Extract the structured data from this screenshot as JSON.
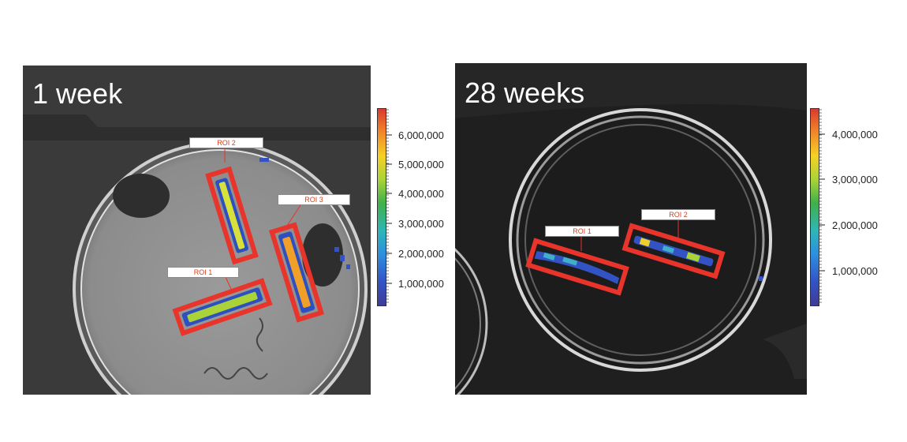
{
  "panels": [
    {
      "title": "1 week",
      "roi_labels": [
        "ROI 2",
        "ROI 3",
        "ROI 1"
      ],
      "colorbar": {
        "labels": [
          "6,000,000",
          "5,000,000",
          "4,000,000",
          "3,000,000",
          "2,000,000",
          "1,000,000"
        ]
      }
    },
    {
      "title": "28 weeks",
      "roi_labels": [
        "ROI 1",
        "ROI 2"
      ],
      "colorbar": {
        "labels": [
          "4,000,000",
          "3,000,000",
          "2,000,000",
          "1,000,000"
        ]
      }
    }
  ],
  "colors": {
    "roi_box": "#e8342a",
    "roi_text": "#d6401f",
    "background_image": "#3b3b3b"
  }
}
